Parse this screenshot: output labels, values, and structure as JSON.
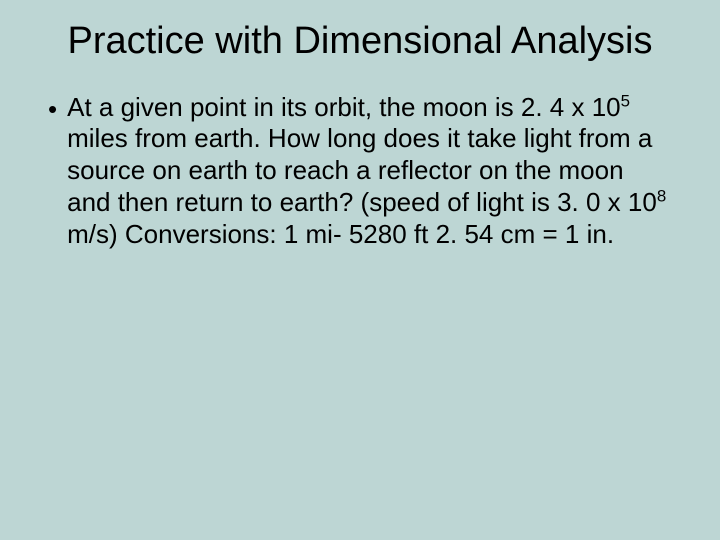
{
  "slide": {
    "background_color": "#bdd6d4",
    "text_color": "#000000",
    "font_family": "Arial, Helvetica, sans-serif",
    "title": {
      "text": "Practice with Dimensional Analysis",
      "font_size_pt": 38,
      "align": "center"
    },
    "bullet_char": "•",
    "body": {
      "font_size_pt": 26,
      "parts": {
        "p1": "At a given point in its orbit, the moon is 2. 4 x 10",
        "exp1": "5",
        "p2": " miles from earth.  How long does it take light from a source on earth to reach a reflector on the moon and then return to earth?  (speed of light is 3. 0 x 10",
        "exp2": "8",
        "p3": " m/s) Conversions:  1 mi- 5280 ft   2. 54 cm = 1 in."
      }
    }
  }
}
